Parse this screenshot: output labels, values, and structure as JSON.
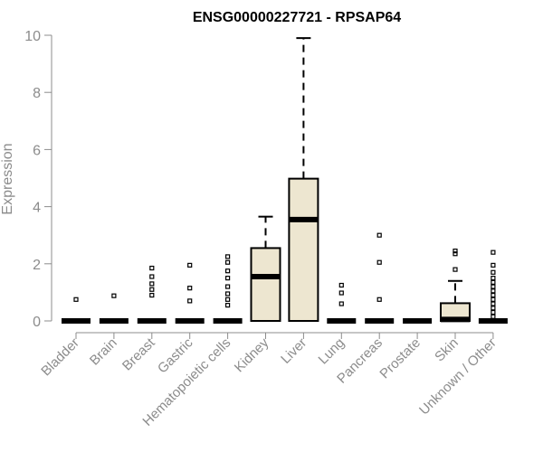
{
  "chart_data": {
    "type": "box",
    "title": "ENSG00000227721 - RPSAP64",
    "ylabel": "Expression",
    "xlabel": "",
    "ylim": [
      0,
      10
    ],
    "yticks": [
      "0",
      "2",
      "4",
      "6",
      "8",
      "10"
    ],
    "box_fill": "#ede6d0",
    "categories": [
      "Bladder",
      "Brain",
      "Breast",
      "Gastric",
      "Hematopoietic cells",
      "Kidney",
      "Liver",
      "Lung",
      "Pancreas",
      "Prostate",
      "Skin",
      "Unknown / Other"
    ],
    "boxes": [
      {
        "q1": 0,
        "median": 0,
        "q3": 0,
        "whisker_low": 0,
        "whisker_high": 0,
        "outliers": [
          0.75
        ]
      },
      {
        "q1": 0,
        "median": 0,
        "q3": 0,
        "whisker_low": 0,
        "whisker_high": 0,
        "outliers": [
          0.88
        ]
      },
      {
        "q1": 0,
        "median": 0,
        "q3": 0,
        "whisker_low": 0,
        "whisker_high": 0,
        "outliers": [
          0.9,
          1.1,
          1.3,
          1.55,
          1.85
        ]
      },
      {
        "q1": 0,
        "median": 0,
        "q3": 0,
        "whisker_low": 0,
        "whisker_high": 0,
        "outliers": [
          0.7,
          1.15,
          1.95
        ]
      },
      {
        "q1": 0,
        "median": 0,
        "q3": 0,
        "whisker_low": 0,
        "whisker_high": 0,
        "outliers": [
          0.55,
          0.75,
          0.95,
          1.2,
          1.5,
          1.75,
          2.05,
          2.25
        ]
      },
      {
        "q1": 0,
        "median": 1.55,
        "q3": 2.55,
        "whisker_low": 0,
        "whisker_high": 3.65,
        "outliers": []
      },
      {
        "q1": 0,
        "median": 3.55,
        "q3": 4.98,
        "whisker_low": 0,
        "whisker_high": 9.9,
        "outliers": []
      },
      {
        "q1": 0,
        "median": 0,
        "q3": 0,
        "whisker_low": 0,
        "whisker_high": 0,
        "outliers": [
          0.6,
          0.98,
          1.25
        ]
      },
      {
        "q1": 0,
        "median": 0,
        "q3": 0,
        "whisker_low": 0,
        "whisker_high": 0,
        "outliers": [
          0.75,
          2.05,
          3.0
        ]
      },
      {
        "q1": 0,
        "median": 0,
        "q3": 0,
        "whisker_low": 0,
        "whisker_high": 0,
        "outliers": []
      },
      {
        "q1": 0,
        "median": 0.05,
        "q3": 0.62,
        "whisker_low": 0,
        "whisker_high": 1.4,
        "outliers": [
          1.8,
          2.35,
          2.45
        ]
      },
      {
        "q1": 0,
        "median": 0,
        "q3": 0,
        "whisker_low": 0,
        "whisker_high": 0,
        "outliers": [
          0.15,
          0.3,
          0.45,
          0.6,
          0.75,
          0.9,
          1.05,
          1.2,
          1.35,
          1.5,
          1.7,
          1.95,
          2.4
        ]
      }
    ]
  }
}
